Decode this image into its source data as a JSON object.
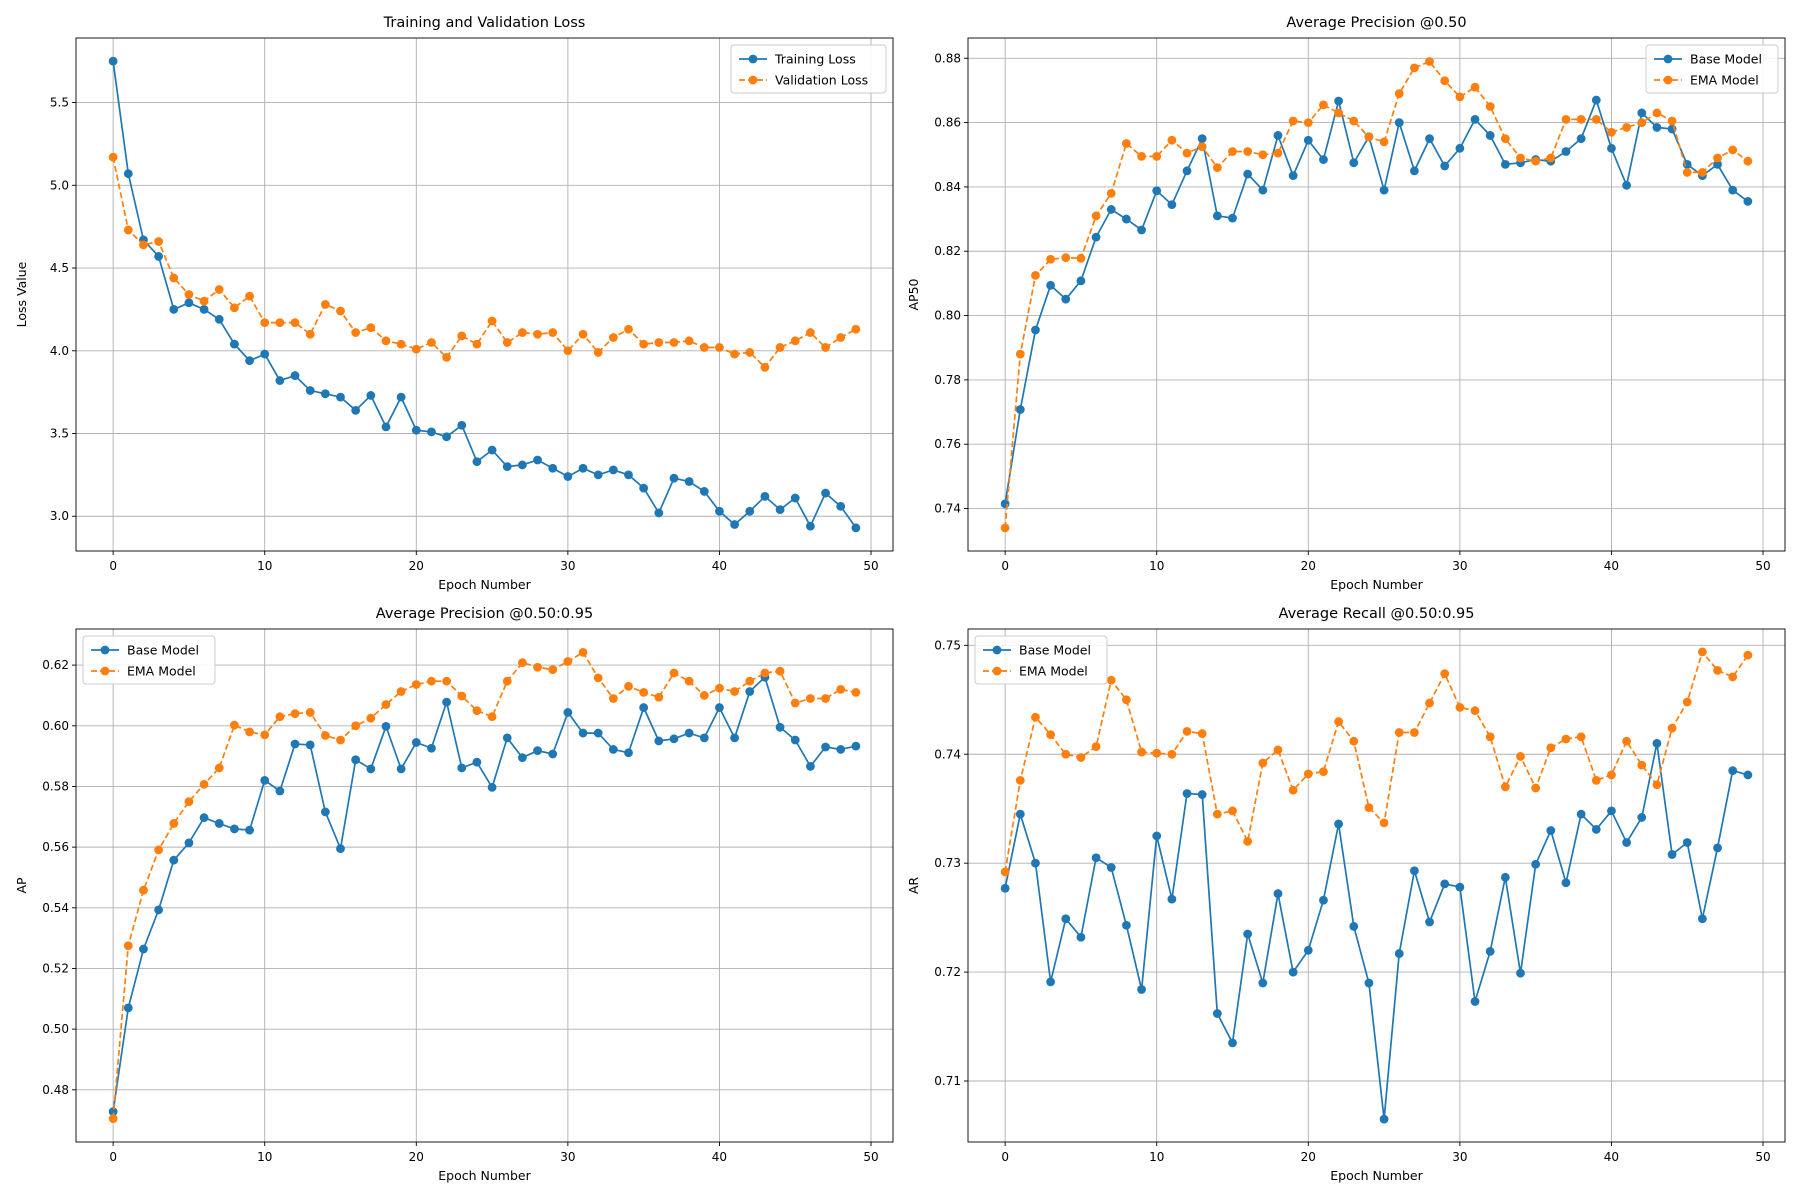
{
  "colors": {
    "series1": "#1f77b4",
    "series2": "#ff7f0e",
    "grid": "#b0b0b0"
  },
  "chart_data": [
    {
      "type": "line",
      "title": "Training and Validation Loss",
      "xlabel": "Epoch Number",
      "ylabel": "Loss Value",
      "xlim": [
        -2.45,
        51.45
      ],
      "ylim": [
        2.79,
        5.89
      ],
      "xticks": [
        0,
        10,
        20,
        30,
        40,
        50
      ],
      "yticks": [
        3.0,
        3.5,
        4.0,
        4.5,
        5.0,
        5.5
      ],
      "ytick_labels": [
        "3.0",
        "3.5",
        "4.0",
        "4.5",
        "5.0",
        "5.5"
      ],
      "grid": true,
      "legend": "upper-right",
      "series": [
        {
          "name": "Training Loss",
          "style": "solid",
          "values": [
            5.75,
            5.07,
            4.67,
            4.57,
            4.25,
            4.29,
            4.25,
            4.19,
            4.04,
            3.94,
            3.98,
            3.82,
            3.85,
            3.76,
            3.74,
            3.72,
            3.64,
            3.73,
            3.54,
            3.72,
            3.52,
            3.51,
            3.48,
            3.55,
            3.33,
            3.4,
            3.3,
            3.31,
            3.34,
            3.29,
            3.24,
            3.29,
            3.25,
            3.28,
            3.25,
            3.17,
            3.02,
            3.23,
            3.21,
            3.15,
            3.03,
            2.95,
            3.03,
            3.12,
            3.04,
            3.11,
            2.94,
            3.14,
            3.06,
            2.93
          ]
        },
        {
          "name": "Validation Loss",
          "style": "dashed",
          "values": [
            5.17,
            4.73,
            4.64,
            4.66,
            4.44,
            4.34,
            4.3,
            4.37,
            4.26,
            4.33,
            4.17,
            4.17,
            4.17,
            4.1,
            4.28,
            4.24,
            4.11,
            4.14,
            4.06,
            4.04,
            4.01,
            4.05,
            3.96,
            4.09,
            4.04,
            4.18,
            4.05,
            4.11,
            4.1,
            4.11,
            4.0,
            4.1,
            3.99,
            4.08,
            4.13,
            4.04,
            4.05,
            4.05,
            4.06,
            4.02,
            4.02,
            3.98,
            3.99,
            3.9,
            4.02,
            4.06,
            4.11,
            4.02,
            4.08,
            4.13
          ]
        }
      ]
    },
    {
      "type": "line",
      "title": "Average Precision @0.50",
      "xlabel": "Epoch Number",
      "ylabel": "AP50",
      "xlim": [
        -2.45,
        51.45
      ],
      "ylim": [
        0.7268,
        0.8863
      ],
      "xticks": [
        0,
        10,
        20,
        30,
        40,
        50
      ],
      "yticks": [
        0.74,
        0.76,
        0.78,
        0.8,
        0.82,
        0.84,
        0.86,
        0.88
      ],
      "ytick_labels": [
        "0.74",
        "0.76",
        "0.78",
        "0.80",
        "0.82",
        "0.84",
        "0.86",
        "0.88"
      ],
      "grid": true,
      "legend": "upper-right",
      "series": [
        {
          "name": "Base Model",
          "style": "solid",
          "values": [
            0.7415,
            0.7708,
            0.7955,
            0.8094,
            0.8051,
            0.8108,
            0.8244,
            0.833,
            0.83,
            0.8266,
            0.8388,
            0.8345,
            0.845,
            0.855,
            0.831,
            0.8303,
            0.844,
            0.839,
            0.856,
            0.8435,
            0.8545,
            0.8485,
            0.8667,
            0.8475,
            0.8556,
            0.839,
            0.86,
            0.845,
            0.855,
            0.8465,
            0.852,
            0.861,
            0.856,
            0.847,
            0.8475,
            0.8485,
            0.848,
            0.851,
            0.855,
            0.867,
            0.852,
            0.8405,
            0.863,
            0.8585,
            0.858,
            0.847,
            0.8435,
            0.847,
            0.839,
            0.8355
          ]
        },
        {
          "name": "EMA Model",
          "style": "dashed",
          "values": [
            0.734,
            0.788,
            0.8125,
            0.8175,
            0.818,
            0.8178,
            0.831,
            0.838,
            0.8535,
            0.8495,
            0.8495,
            0.8545,
            0.8505,
            0.8525,
            0.846,
            0.851,
            0.851,
            0.85,
            0.8505,
            0.8605,
            0.86,
            0.8655,
            0.863,
            0.8605,
            0.8555,
            0.854,
            0.869,
            0.877,
            0.879,
            0.873,
            0.868,
            0.871,
            0.865,
            0.855,
            0.849,
            0.848,
            0.849,
            0.861,
            0.861,
            0.861,
            0.857,
            0.8585,
            0.86,
            0.863,
            0.8605,
            0.8445,
            0.8445,
            0.849,
            0.8515,
            0.848
          ]
        }
      ]
    },
    {
      "type": "line",
      "title": "Average Precision @0.50:0.95",
      "xlabel": "Epoch Number",
      "ylabel": "AP",
      "xlim": [
        -2.45,
        51.45
      ],
      "ylim": [
        0.4628,
        0.6319
      ],
      "xticks": [
        0,
        10,
        20,
        30,
        40,
        50
      ],
      "yticks": [
        0.48,
        0.5,
        0.52,
        0.54,
        0.56,
        0.58,
        0.6,
        0.62
      ],
      "ytick_labels": [
        "0.48",
        "0.50",
        "0.52",
        "0.54",
        "0.56",
        "0.58",
        "0.60",
        "0.62"
      ],
      "grid": true,
      "legend": "upper-left",
      "series": [
        {
          "name": "Base Model",
          "style": "solid",
          "values": [
            0.4728,
            0.507,
            0.5264,
            0.5393,
            0.5557,
            0.5614,
            0.5697,
            0.5678,
            0.566,
            0.5656,
            0.582,
            0.5785,
            0.594,
            0.5937,
            0.5716,
            0.5595,
            0.5888,
            0.5858,
            0.5998,
            0.5858,
            0.5945,
            0.5926,
            0.6078,
            0.5861,
            0.588,
            0.5797,
            0.596,
            0.5895,
            0.5918,
            0.5907,
            0.6044,
            0.5976,
            0.5976,
            0.5922,
            0.5911,
            0.606,
            0.595,
            0.5957,
            0.5976,
            0.596,
            0.606,
            0.596,
            0.6113,
            0.616,
            0.5995,
            0.5953,
            0.5866,
            0.593,
            0.5922,
            0.5933
          ]
        },
        {
          "name": "EMA Model",
          "style": "dashed",
          "values": [
            0.4705,
            0.5275,
            0.5458,
            0.5591,
            0.5678,
            0.575,
            0.5807,
            0.5861,
            0.6002,
            0.598,
            0.597,
            0.603,
            0.604,
            0.6044,
            0.5968,
            0.5953,
            0.6,
            0.6025,
            0.607,
            0.6113,
            0.6136,
            0.6147,
            0.6147,
            0.6098,
            0.605,
            0.603,
            0.6147,
            0.6208,
            0.6193,
            0.6185,
            0.6212,
            0.6242,
            0.6158,
            0.609,
            0.613,
            0.611,
            0.6094,
            0.6174,
            0.6147,
            0.61,
            0.6124,
            0.6113,
            0.6147,
            0.6174,
            0.618,
            0.6075,
            0.609,
            0.609,
            0.612,
            0.611
          ]
        }
      ]
    },
    {
      "type": "line",
      "title": "Average Recall @0.50:0.95",
      "xlabel": "Epoch Number",
      "ylabel": "AR",
      "xlim": [
        -2.45,
        51.45
      ],
      "ylim": [
        0.7044,
        0.7515
      ],
      "xticks": [
        0,
        10,
        20,
        30,
        40,
        50
      ],
      "yticks": [
        0.71,
        0.72,
        0.73,
        0.74,
        0.75
      ],
      "ytick_labels": [
        "0.71",
        "0.72",
        "0.73",
        "0.74",
        "0.75"
      ],
      "grid": true,
      "legend": "upper-left",
      "series": [
        {
          "name": "Base Model",
          "style": "solid",
          "values": [
            0.7277,
            0.7345,
            0.73,
            0.7191,
            0.7249,
            0.7232,
            0.7305,
            0.7296,
            0.7243,
            0.7184,
            0.7325,
            0.7267,
            0.7364,
            0.7363,
            0.7162,
            0.7135,
            0.7235,
            0.719,
            0.7272,
            0.72,
            0.722,
            0.7266,
            0.7336,
            0.7242,
            0.719,
            0.7065,
            0.7217,
            0.7293,
            0.7246,
            0.7281,
            0.7278,
            0.7173,
            0.7219,
            0.7287,
            0.7199,
            0.7299,
            0.733,
            0.7282,
            0.7345,
            0.7331,
            0.7348,
            0.7319,
            0.7342,
            0.741,
            0.7308,
            0.7319,
            0.7249,
            0.7314,
            0.7385,
            0.7381
          ]
        },
        {
          "name": "EMA Model",
          "style": "dashed",
          "values": [
            0.7292,
            0.7376,
            0.7434,
            0.7418,
            0.74,
            0.7397,
            0.7407,
            0.7468,
            0.745,
            0.7402,
            0.7401,
            0.74,
            0.7421,
            0.7419,
            0.7345,
            0.7348,
            0.732,
            0.7392,
            0.7404,
            0.7367,
            0.7382,
            0.7384,
            0.743,
            0.7412,
            0.7351,
            0.7337,
            0.742,
            0.742,
            0.7447,
            0.7474,
            0.7443,
            0.744,
            0.7416,
            0.737,
            0.7398,
            0.7369,
            0.7406,
            0.7414,
            0.7416,
            0.7376,
            0.7381,
            0.7412,
            0.739,
            0.7372,
            0.7424,
            0.7448,
            0.7494,
            0.7477,
            0.7471,
            0.7491
          ]
        }
      ]
    }
  ]
}
